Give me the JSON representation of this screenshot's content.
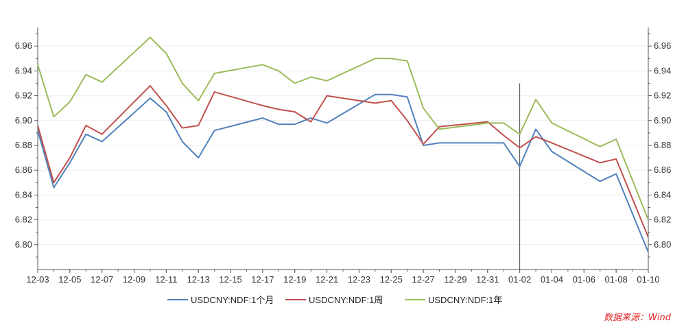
{
  "source_note": "数据来源：Wind",
  "chart_data": {
    "type": "line",
    "title": "",
    "xlabel": "",
    "ylabel": "",
    "ylim": [
      6.78,
      6.975
    ],
    "yticks": [
      "6.80",
      "6.82",
      "6.84",
      "6.86",
      "6.88",
      "6.90",
      "6.92",
      "6.94",
      "6.96"
    ],
    "ytick_values": [
      6.8,
      6.82,
      6.84,
      6.86,
      6.88,
      6.9,
      6.92,
      6.94,
      6.96
    ],
    "xticks": [
      "12-03",
      "12-05",
      "12-07",
      "12-09",
      "12-11",
      "12-13",
      "12-15",
      "12-17",
      "12-19",
      "12-21",
      "12-23",
      "12-25",
      "12-27",
      "12-29",
      "12-31",
      "01-02",
      "01-04",
      "01-06",
      "01-08",
      "01-10"
    ],
    "grid": true,
    "legend_position": "bottom",
    "vertical_marker": "01-02",
    "x": [
      "12-03",
      "12-04",
      "12-05",
      "12-06",
      "12-07",
      "12-10",
      "12-11",
      "12-12",
      "12-13",
      "12-14",
      "12-17",
      "12-18",
      "12-19",
      "12-20",
      "12-21",
      "12-24",
      "12-25",
      "12-26",
      "12-27",
      "12-28",
      "12-31",
      "01-01",
      "01-02",
      "01-03",
      "01-04",
      "01-07",
      "01-08",
      "01-10"
    ],
    "series": [
      {
        "name": "USDCNY:NDF:1个月",
        "color": "#4f81bd",
        "values": [
          6.892,
          6.846,
          6.866,
          6.889,
          6.883,
          6.918,
          6.907,
          6.883,
          6.87,
          6.892,
          6.902,
          6.897,
          6.897,
          6.902,
          6.898,
          6.921,
          6.921,
          6.919,
          6.88,
          6.882,
          6.882,
          6.882,
          6.863,
          6.893,
          6.875,
          6.851,
          6.857,
          6.794
        ]
      },
      {
        "name": "USDCNY:NDF:1周",
        "color": "#c0504d",
        "values": [
          6.896,
          6.85,
          6.87,
          6.896,
          6.889,
          6.928,
          6.912,
          6.894,
          6.896,
          6.923,
          6.912,
          6.909,
          6.907,
          6.899,
          6.92,
          6.914,
          6.916,
          6.9,
          6.881,
          6.895,
          6.899,
          6.888,
          6.878,
          6.887,
          6.882,
          6.866,
          6.869,
          6.806
        ]
      },
      {
        "name": "USDCNY:NDF:1年",
        "color": "#9bbb59",
        "values": [
          6.945,
          6.903,
          6.915,
          6.937,
          6.931,
          6.967,
          6.954,
          6.93,
          6.916,
          6.938,
          6.945,
          6.94,
          6.93,
          6.935,
          6.932,
          6.95,
          6.95,
          6.948,
          6.91,
          6.893,
          6.898,
          6.898,
          6.889,
          6.917,
          6.898,
          6.879,
          6.885,
          6.82
        ]
      }
    ]
  }
}
